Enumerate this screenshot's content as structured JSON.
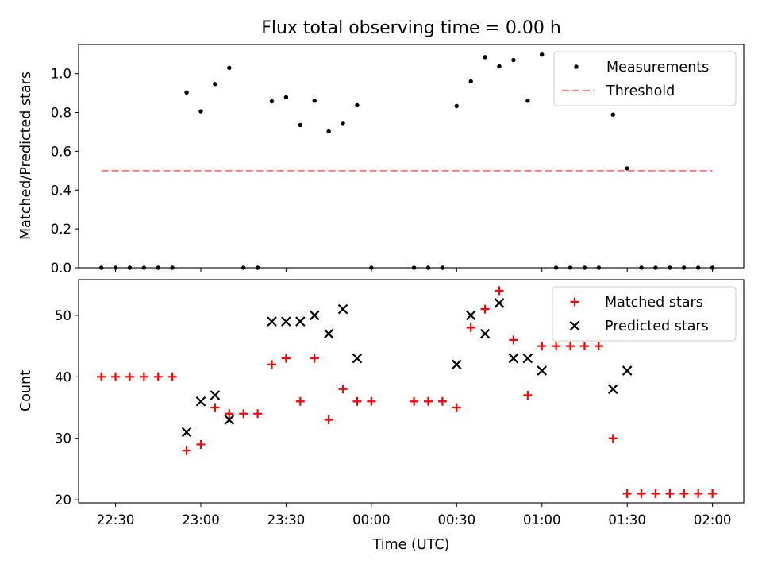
{
  "chart_data": [
    {
      "type": "scatter",
      "title": "Flux total observing time = 0.00 h",
      "ylabel": "Matched/Predicted stars",
      "xlabel": "",
      "ylim": [
        0,
        1.15
      ],
      "yticks": [
        0.0,
        0.2,
        0.4,
        0.6,
        0.8,
        1.0
      ],
      "ytick_labels": [
        "0.0",
        "0.2",
        "0.4",
        "0.6",
        "0.8",
        "1.0"
      ],
      "xlim": [
        "22:17",
        "02:11"
      ],
      "xticks": [
        "22:30",
        "23:00",
        "23:30",
        "00:00",
        "00:30",
        "01:00",
        "01:30",
        "02:00"
      ],
      "legend_position": "top-right",
      "series": [
        {
          "name": "Measurements",
          "marker": "dot",
          "color": "#000000",
          "points": [
            [
              "22:25",
              0
            ],
            [
              "22:30",
              0
            ],
            [
              "22:35",
              0
            ],
            [
              "22:40",
              0
            ],
            [
              "22:45",
              0
            ],
            [
              "22:50",
              0
            ],
            [
              "22:55",
              0.903
            ],
            [
              "23:00",
              0.806
            ],
            [
              "23:05",
              0.946
            ],
            [
              "23:10",
              1.03
            ],
            [
              "23:15",
              0
            ],
            [
              "23:20",
              0
            ],
            [
              "23:25",
              0.857
            ],
            [
              "23:30",
              0.878
            ],
            [
              "23:35",
              0.735
            ],
            [
              "23:40",
              0.86
            ],
            [
              "23:45",
              0.702
            ],
            [
              "23:50",
              0.745
            ],
            [
              "23:55",
              0.837
            ],
            [
              "00:00",
              0
            ],
            [
              "00:15",
              0
            ],
            [
              "00:20",
              0
            ],
            [
              "00:25",
              0
            ],
            [
              "00:30",
              0.833
            ],
            [
              "00:35",
              0.96
            ],
            [
              "00:40",
              1.085
            ],
            [
              "00:45",
              1.038
            ],
            [
              "00:50",
              1.07
            ],
            [
              "00:55",
              0.86
            ],
            [
              "01:00",
              1.098
            ],
            [
              "01:05",
              0
            ],
            [
              "01:10",
              0
            ],
            [
              "01:15",
              0
            ],
            [
              "01:20",
              0
            ],
            [
              "01:25",
              0.789
            ],
            [
              "01:30",
              0.512
            ],
            [
              "01:35",
              0
            ],
            [
              "01:40",
              0
            ],
            [
              "01:45",
              0
            ],
            [
              "01:50",
              0
            ],
            [
              "01:55",
              0
            ],
            [
              "02:00",
              0
            ]
          ]
        },
        {
          "name": "Threshold",
          "marker": "dashed-line",
          "color": "#ff7f7f",
          "points": [
            [
              "22:25",
              0.5
            ],
            [
              "02:00",
              0.5
            ]
          ]
        }
      ]
    },
    {
      "type": "scatter",
      "title": "",
      "ylabel": "Count",
      "xlabel": "Time (UTC)",
      "ylim": [
        19.5,
        55.8
      ],
      "yticks": [
        20,
        30,
        40,
        50
      ],
      "ytick_labels": [
        "20",
        "30",
        "40",
        "50"
      ],
      "xlim": [
        "22:17",
        "02:11"
      ],
      "xticks": [
        "22:30",
        "23:00",
        "23:30",
        "00:00",
        "00:30",
        "01:00",
        "01:30",
        "02:00"
      ],
      "xtick_labels": [
        "22:30",
        "23:00",
        "23:30",
        "00:00",
        "00:30",
        "01:00",
        "01:30",
        "02:00"
      ],
      "legend_position": "top-right",
      "series": [
        {
          "name": "Matched stars",
          "marker": "plus",
          "color": "#ff0000",
          "points": [
            [
              "22:25",
              40
            ],
            [
              "22:30",
              40
            ],
            [
              "22:35",
              40
            ],
            [
              "22:40",
              40
            ],
            [
              "22:45",
              40
            ],
            [
              "22:50",
              40
            ],
            [
              "22:55",
              28
            ],
            [
              "23:00",
              29
            ],
            [
              "23:05",
              35
            ],
            [
              "23:10",
              34
            ],
            [
              "23:15",
              34
            ],
            [
              "23:20",
              34
            ],
            [
              "23:25",
              42
            ],
            [
              "23:30",
              43
            ],
            [
              "23:35",
              36
            ],
            [
              "23:40",
              43
            ],
            [
              "23:45",
              33
            ],
            [
              "23:50",
              38
            ],
            [
              "23:55",
              36
            ],
            [
              "00:00",
              36
            ],
            [
              "00:15",
              36
            ],
            [
              "00:20",
              36
            ],
            [
              "00:25",
              36
            ],
            [
              "00:30",
              35
            ],
            [
              "00:35",
              48
            ],
            [
              "00:40",
              51
            ],
            [
              "00:45",
              54
            ],
            [
              "00:50",
              46
            ],
            [
              "00:55",
              37
            ],
            [
              "01:00",
              45
            ],
            [
              "01:05",
              45
            ],
            [
              "01:10",
              45
            ],
            [
              "01:15",
              45
            ],
            [
              "01:20",
              45
            ],
            [
              "01:25",
              30
            ],
            [
              "01:30",
              21
            ],
            [
              "01:35",
              21
            ],
            [
              "01:40",
              21
            ],
            [
              "01:45",
              21
            ],
            [
              "01:50",
              21
            ],
            [
              "01:55",
              21
            ],
            [
              "02:00",
              21
            ]
          ]
        },
        {
          "name": "Predicted stars",
          "marker": "x",
          "color": "#000000",
          "points": [
            [
              "22:55",
              31
            ],
            [
              "23:00",
              36
            ],
            [
              "23:05",
              37
            ],
            [
              "23:10",
              33
            ],
            [
              "23:25",
              49
            ],
            [
              "23:30",
              49
            ],
            [
              "23:35",
              49
            ],
            [
              "23:40",
              50
            ],
            [
              "23:45",
              47
            ],
            [
              "23:50",
              51
            ],
            [
              "23:55",
              43
            ],
            [
              "00:30",
              42
            ],
            [
              "00:35",
              50
            ],
            [
              "00:40",
              47
            ],
            [
              "00:45",
              52
            ],
            [
              "00:50",
              43
            ],
            [
              "00:55",
              43
            ],
            [
              "01:00",
              41
            ],
            [
              "01:25",
              38
            ],
            [
              "01:30",
              41
            ]
          ]
        }
      ]
    }
  ]
}
